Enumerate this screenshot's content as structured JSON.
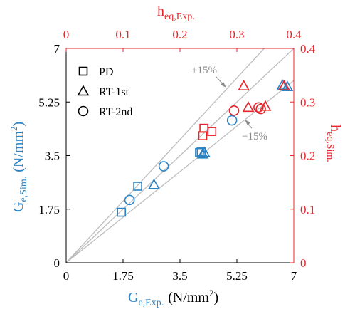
{
  "chart_data": {
    "type": "scatter",
    "x": {
      "label_main": "G",
      "label_sub": "e,Exp.",
      "label_unit": "(N/mm",
      "label_sup": "2",
      "label_close": ")",
      "lim": [
        0,
        7
      ],
      "ticks": [
        0,
        1.75,
        3.5,
        5.25,
        7
      ],
      "tick_labels": [
        "0",
        "1.75",
        "3.5",
        "5.25",
        "7"
      ]
    },
    "y": {
      "label_main": "G",
      "label_sub": "e,Sim.",
      "label_unit": "(N/mm",
      "label_sup": "2",
      "label_close": ")",
      "lim": [
        0,
        7
      ],
      "ticks": [
        0,
        1.75,
        3.5,
        5.25,
        7
      ],
      "tick_labels": [
        "0",
        "1.75",
        "3.5",
        "5.25",
        "7"
      ]
    },
    "x2": {
      "label_main": "h",
      "label_sub": "eq,Exp.",
      "lim": [
        0,
        0.4
      ],
      "ticks": [
        0,
        0.1,
        0.2,
        0.3,
        0.4
      ],
      "tick_labels": [
        "0",
        "0.1",
        "0.2",
        "0.3",
        "0.4"
      ]
    },
    "y2": {
      "label_main": "h",
      "label_sub": "eq,Sim.",
      "lim": [
        0,
        0.4
      ],
      "ticks": [
        0,
        0.1,
        0.2,
        0.3,
        0.4
      ],
      "tick_labels": [
        "0",
        "0.1",
        "0.2",
        "0.3",
        "0.4"
      ]
    },
    "reference_lines": [
      {
        "slope": 1.0
      },
      {
        "slope": 1.15,
        "label": "+15%"
      },
      {
        "slope": 0.85,
        "label": "−15%"
      }
    ],
    "legend": {
      "position": "top-left",
      "entries": [
        {
          "marker": "square",
          "label": "PD"
        },
        {
          "marker": "triangle",
          "label": "RT-1st"
        },
        {
          "marker": "circle",
          "label": "RT-2nd"
        }
      ]
    },
    "series": [
      {
        "marker": "square",
        "color": "#2a83c4",
        "axes": "primary",
        "points": [
          [
            1.7,
            1.65
          ],
          [
            2.2,
            2.5
          ],
          [
            4.1,
            3.6
          ],
          [
            4.15,
            3.62
          ]
        ]
      },
      {
        "marker": "triangle",
        "color": "#2a83c4",
        "axes": "primary",
        "points": [
          [
            2.7,
            2.55
          ],
          [
            4.2,
            3.55
          ],
          [
            4.25,
            3.6
          ],
          [
            6.65,
            5.8
          ],
          [
            6.8,
            5.75
          ]
        ]
      },
      {
        "marker": "circle",
        "color": "#2a83c4",
        "axes": "primary",
        "points": [
          [
            1.95,
            2.05
          ],
          [
            3.0,
            3.15
          ],
          [
            5.1,
            4.65
          ]
        ]
      },
      {
        "marker": "square",
        "color": "#e8242a",
        "axes": "secondary",
        "points": [
          [
            0.24,
            0.237
          ],
          [
            0.242,
            0.251
          ],
          [
            0.256,
            0.245
          ]
        ]
      },
      {
        "marker": "triangle",
        "color": "#e8242a",
        "axes": "secondary",
        "points": [
          [
            0.312,
            0.33
          ],
          [
            0.32,
            0.29
          ],
          [
            0.35,
            0.292
          ],
          [
            0.383,
            0.33
          ]
        ]
      },
      {
        "marker": "circle",
        "color": "#e8242a",
        "axes": "secondary",
        "points": [
          [
            0.295,
            0.284
          ],
          [
            0.338,
            0.29
          ],
          [
            0.342,
            0.287
          ]
        ]
      }
    ],
    "grid": false
  }
}
